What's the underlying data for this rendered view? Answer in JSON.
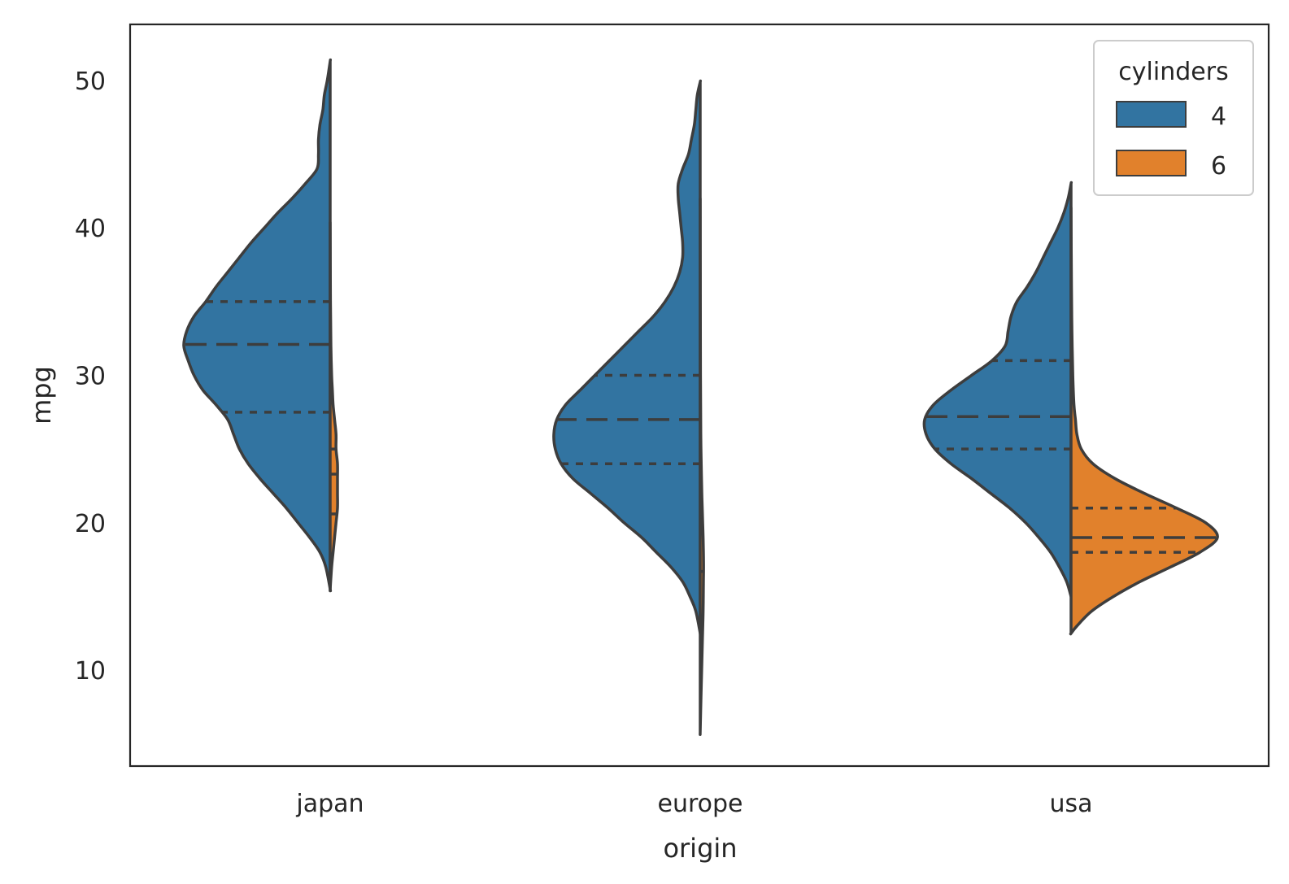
{
  "chart_data": {
    "type": "violin",
    "split": true,
    "inner": "quartile",
    "xlabel": "origin",
    "ylabel": "mpg",
    "categories": [
      "japan",
      "europe",
      "usa"
    ],
    "ylim": [
      3.5,
      53.8
    ],
    "yticks": [
      10,
      20,
      30,
      40,
      50
    ],
    "grid": false,
    "legend": {
      "title": "cylinders",
      "placement": "top-right"
    },
    "series": [
      {
        "name": "4",
        "color": "#3274a1",
        "violins": [
          {
            "category": "japan",
            "quartiles": {
              "q1": 27.5,
              "median": 32.1,
              "q3": 35.0
            },
            "density": [
              [
                15.5,
                0.0
              ],
              [
                17,
                0.03
              ],
              [
                18,
                0.07
              ],
              [
                19,
                0.14
              ],
              [
                20,
                0.22
              ],
              [
                21,
                0.3
              ],
              [
                22,
                0.39
              ],
              [
                23,
                0.48
              ],
              [
                24,
                0.56
              ],
              [
                25,
                0.62
              ],
              [
                26,
                0.66
              ],
              [
                27,
                0.7
              ],
              [
                28,
                0.78
              ],
              [
                29,
                0.87
              ],
              [
                30,
                0.93
              ],
              [
                31,
                0.97
              ],
              [
                32,
                1.0
              ],
              [
                33,
                0.98
              ],
              [
                34,
                0.93
              ],
              [
                35,
                0.85
              ],
              [
                36,
                0.78
              ],
              [
                37,
                0.7
              ],
              [
                38,
                0.62
              ],
              [
                39,
                0.54
              ],
              [
                40,
                0.45
              ],
              [
                41,
                0.36
              ],
              [
                42,
                0.26
              ],
              [
                43,
                0.17
              ],
              [
                44,
                0.09
              ],
              [
                45,
                0.08
              ],
              [
                46,
                0.08
              ],
              [
                47,
                0.07
              ],
              [
                48,
                0.05
              ],
              [
                49,
                0.04
              ],
              [
                50,
                0.02
              ],
              [
                51.3,
                0.0
              ]
            ]
          },
          {
            "category": "europe",
            "quartiles": {
              "q1": 24.0,
              "median": 27.0,
              "q3": 30.0
            },
            "density": [
              [
                12.5,
                0.0
              ],
              [
                14,
                0.03
              ],
              [
                15,
                0.07
              ],
              [
                16,
                0.12
              ],
              [
                17,
                0.2
              ],
              [
                18,
                0.3
              ],
              [
                19,
                0.4
              ],
              [
                20,
                0.52
              ],
              [
                21,
                0.63
              ],
              [
                22,
                0.75
              ],
              [
                23,
                0.87
              ],
              [
                24,
                0.95
              ],
              [
                25,
                0.99
              ],
              [
                26,
                1.0
              ],
              [
                27,
                0.98
              ],
              [
                28,
                0.92
              ],
              [
                29,
                0.82
              ],
              [
                30,
                0.72
              ],
              [
                31,
                0.62
              ],
              [
                32,
                0.52
              ],
              [
                33,
                0.42
              ],
              [
                34,
                0.32
              ],
              [
                35,
                0.24
              ],
              [
                36,
                0.18
              ],
              [
                37,
                0.14
              ],
              [
                38,
                0.12
              ],
              [
                39,
                0.12
              ],
              [
                40,
                0.13
              ],
              [
                41,
                0.14
              ],
              [
                42,
                0.15
              ],
              [
                43,
                0.15
              ],
              [
                44,
                0.12
              ],
              [
                45,
                0.08
              ],
              [
                46,
                0.06
              ],
              [
                47,
                0.04
              ],
              [
                48,
                0.03
              ],
              [
                49,
                0.02
              ],
              [
                49.9,
                0.0
              ]
            ]
          },
          {
            "category": "usa",
            "quartiles": {
              "q1": 25.0,
              "median": 27.2,
              "q3": 31.0
            },
            "density": [
              [
                15,
                0.0
              ],
              [
                16,
                0.03
              ],
              [
                17,
                0.08
              ],
              [
                18,
                0.14
              ],
              [
                19,
                0.22
              ],
              [
                20,
                0.31
              ],
              [
                21,
                0.42
              ],
              [
                22,
                0.55
              ],
              [
                23,
                0.68
              ],
              [
                24,
                0.82
              ],
              [
                25,
                0.93
              ],
              [
                26,
                0.99
              ],
              [
                27,
                1.0
              ],
              [
                28,
                0.94
              ],
              [
                29,
                0.82
              ],
              [
                30,
                0.68
              ],
              [
                31,
                0.54
              ],
              [
                32,
                0.45
              ],
              [
                33,
                0.43
              ],
              [
                34,
                0.41
              ],
              [
                35,
                0.37
              ],
              [
                36,
                0.3
              ],
              [
                37,
                0.24
              ],
              [
                38,
                0.19
              ],
              [
                39,
                0.14
              ],
              [
                40,
                0.09
              ],
              [
                41,
                0.05
              ],
              [
                42,
                0.02
              ],
              [
                43,
                0.0
              ]
            ]
          }
        ]
      },
      {
        "name": "6",
        "color": "#e1812c",
        "violins": [
          {
            "category": "japan",
            "quartiles": {
              "q1": 20.6,
              "median": 23.3,
              "q3": 25.0
            },
            "density": [
              [
                15.5,
                0.0
              ],
              [
                17,
                0.01
              ],
              [
                18,
                0.02
              ],
              [
                19,
                0.03
              ],
              [
                20,
                0.04
              ],
              [
                21,
                0.05
              ],
              [
                22,
                0.05
              ],
              [
                23,
                0.05
              ],
              [
                24,
                0.05
              ],
              [
                25,
                0.04
              ],
              [
                26,
                0.04
              ],
              [
                27,
                0.03
              ],
              [
                28,
                0.02
              ],
              [
                29,
                0.015
              ],
              [
                30,
                0.01
              ],
              [
                32,
                0.005
              ],
              [
                35,
                0.002
              ],
              [
                40,
                0.0
              ]
            ]
          },
          {
            "category": "europe",
            "quartiles": {
              "q1": 16.7,
              "median": 16.7,
              "q3": 20.4
            },
            "density": [
              [
                5.8,
                0.0
              ],
              [
                8,
                0.005
              ],
              [
                10,
                0.01
              ],
              [
                12,
                0.015
              ],
              [
                14,
                0.02
              ],
              [
                16,
                0.022
              ],
              [
                17,
                0.023
              ],
              [
                18,
                0.022
              ],
              [
                19,
                0.02
              ],
              [
                20,
                0.017
              ],
              [
                21,
                0.014
              ],
              [
                22,
                0.011
              ],
              [
                24,
                0.007
              ],
              [
                26,
                0.004
              ],
              [
                30,
                0.002
              ],
              [
                35,
                0.001
              ],
              [
                41.5,
                0.0
              ]
            ]
          },
          {
            "category": "usa",
            "quartiles": {
              "q1": 18.0,
              "median": 19.0,
              "q3": 21.0
            },
            "density": [
              [
                12.5,
                0.0
              ],
              [
                13,
                0.04
              ],
              [
                14,
                0.14
              ],
              [
                15,
                0.29
              ],
              [
                16,
                0.47
              ],
              [
                17,
                0.68
              ],
              [
                18,
                0.88
              ],
              [
                19,
                1.0
              ],
              [
                20,
                0.92
              ],
              [
                21,
                0.72
              ],
              [
                22,
                0.5
              ],
              [
                23,
                0.3
              ],
              [
                24,
                0.15
              ],
              [
                25,
                0.07
              ],
              [
                26,
                0.04
              ],
              [
                27,
                0.03
              ],
              [
                28,
                0.02
              ],
              [
                30,
                0.012
              ],
              [
                33,
                0.006
              ],
              [
                36,
                0.003
              ],
              [
                41,
                0.0
              ]
            ]
          }
        ]
      }
    ]
  }
}
